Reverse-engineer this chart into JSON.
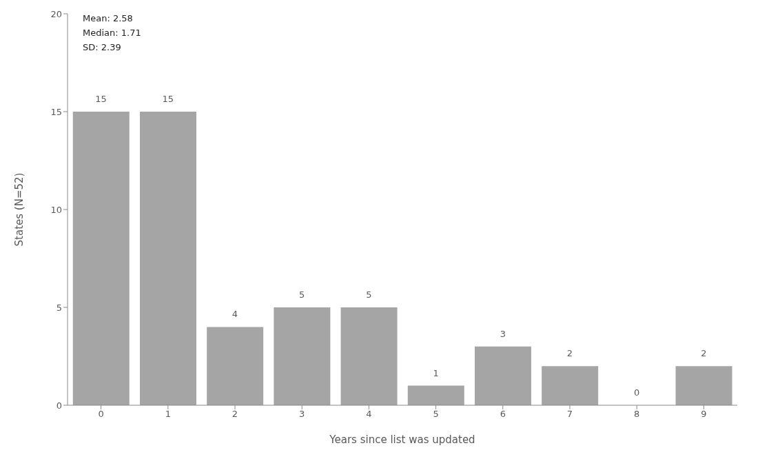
{
  "chart_data": {
    "type": "bar",
    "xlabel": "Years since list was updated",
    "ylabel": "States (N=52)",
    "categories": [
      "0",
      "1",
      "2",
      "3",
      "4",
      "5",
      "6",
      "7",
      "8",
      "9"
    ],
    "values": [
      15,
      15,
      4,
      5,
      5,
      1,
      3,
      2,
      0,
      2
    ],
    "color": "#a5a5a5",
    "ylim": [
      0,
      20
    ],
    "yticks": [
      0,
      5,
      10,
      15,
      20
    ],
    "grid": false,
    "data_labels": true,
    "annotations": [
      "Mean: 2.58",
      "Median: 1.71",
      "SD: 2.39"
    ]
  }
}
